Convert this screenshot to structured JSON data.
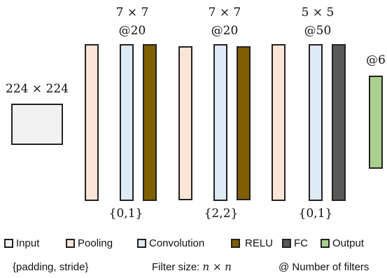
{
  "labels": {
    "input_size": "224 × 224",
    "filter_1": "7 × 7",
    "count_1": "@20",
    "filter_2": "7 × 7",
    "count_2": "@20",
    "filter_3": "5 × 5",
    "count_3": "@50",
    "output_count": "@6",
    "param_1": "{0,1}",
    "param_2": "{2,2}",
    "param_3": "{0,1}"
  },
  "legend": {
    "items": [
      {
        "label": "Input",
        "color": "#f1f1f1"
      },
      {
        "label": "Pooling",
        "color": "#fbe5d6"
      },
      {
        "label": "Convolution",
        "color": "#deebf7"
      },
      {
        "label": "RELU",
        "color": "#7f5f00"
      },
      {
        "label": "FC",
        "color": "#595959"
      },
      {
        "label": "Output",
        "color": "#a9d18e"
      }
    ]
  },
  "notes": {
    "padding_stride": "{padding, stride}",
    "filter_size_prefix": "Filter size: ",
    "filter_size_math": "n × n",
    "number_filters": "@ Number of filters"
  },
  "colors": {
    "input": "#f1f1f1",
    "pooling": "#fbe5d6",
    "convolution": "#deebf7",
    "relu": "#7f5f00",
    "fc": "#595959",
    "output": "#a9d18e",
    "stroke": "#222222"
  }
}
